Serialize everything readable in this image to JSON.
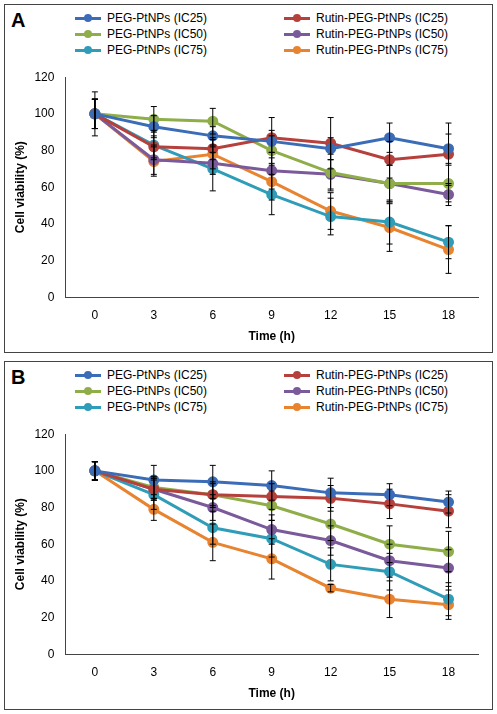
{
  "chart_data": [
    {
      "type": "line",
      "title": "A",
      "x_label": "Time (h)",
      "y_label": "Cell viability (%)",
      "categories": [
        "0",
        "3",
        "6",
        "9",
        "12",
        "15",
        "18"
      ],
      "ylim": [
        0,
        120
      ],
      "yticks": [
        0,
        20,
        40,
        60,
        80,
        100,
        120
      ],
      "grid": false,
      "legend": "top",
      "marker": "circle",
      "series": [
        {
          "name": "PEG-PtNPs (IC25)",
          "color": "#3b6cb7",
          "values": [
            100,
            93,
            88,
            85,
            81,
            87,
            81
          ],
          "errors": [
            8,
            6,
            5,
            6,
            6,
            8,
            8
          ]
        },
        {
          "name": "Rutin-PEG-PtNPs (IC25)",
          "color": "#b6403c",
          "values": [
            100,
            82,
            81,
            87,
            84,
            75,
            78
          ],
          "errors": [
            8,
            6,
            6,
            11,
            14,
            10,
            17
          ]
        },
        {
          "name": "PEG-PtNPs (IC50)",
          "color": "#8fae4a",
          "values": [
            100,
            97,
            96,
            80,
            68,
            62,
            62
          ],
          "errors": [
            8,
            7,
            7,
            8,
            10,
            10,
            10
          ]
        },
        {
          "name": "Rutin-PEG-PtNPs (IC50)",
          "color": "#7a5a9a",
          "values": [
            100,
            75,
            73,
            69,
            67,
            62,
            56
          ],
          "errors": [
            8,
            8,
            6,
            10,
            8,
            10,
            6
          ]
        },
        {
          "name": "PEG-PtNPs (IC75)",
          "color": "#2f9db8",
          "values": [
            100,
            83,
            70,
            56,
            44,
            41,
            30
          ],
          "errors": [
            8,
            8,
            12,
            11,
            10,
            12,
            9
          ]
        },
        {
          "name": "Rutin-PEG-PtNPs (IC75)",
          "color": "#e8832f",
          "values": [
            100,
            74,
            78,
            63,
            47,
            38,
            26
          ],
          "errors": [
            12,
            8,
            8,
            10,
            10,
            13,
            13
          ]
        }
      ]
    },
    {
      "type": "line",
      "title": "B",
      "x_label": "Time (h)",
      "y_label": "Cell viability (%)",
      "categories": [
        "0",
        "3",
        "6",
        "9",
        "12",
        "15",
        "18"
      ],
      "ylim": [
        0,
        120
      ],
      "yticks": [
        0,
        20,
        40,
        60,
        80,
        100,
        120
      ],
      "grid": false,
      "legend": "top",
      "marker": "circle",
      "series": [
        {
          "name": "PEG-PtNPs (IC25)",
          "color": "#3b6cb7",
          "values": [
            100,
            95,
            94,
            92,
            88,
            87,
            83
          ],
          "errors": [
            5,
            8,
            9,
            8,
            8,
            6,
            6
          ]
        },
        {
          "name": "Rutin-PEG-PtNPs (IC25)",
          "color": "#b6403c",
          "values": [
            100,
            90,
            87,
            86,
            85,
            82,
            78
          ],
          "errors": [
            5,
            6,
            6,
            7,
            7,
            8,
            9
          ]
        },
        {
          "name": "PEG-PtNPs (IC50)",
          "color": "#8fae4a",
          "values": [
            100,
            91,
            87,
            81,
            71,
            60,
            56
          ],
          "errors": [
            5,
            6,
            7,
            8,
            9,
            10,
            11
          ]
        },
        {
          "name": "Rutin-PEG-PtNPs (IC50)",
          "color": "#7a5a9a",
          "values": [
            100,
            90,
            80,
            68,
            62,
            51,
            47
          ],
          "errors": [
            5,
            6,
            7,
            8,
            8,
            9,
            10
          ]
        },
        {
          "name": "PEG-PtNPs (IC75)",
          "color": "#2f9db8",
          "values": [
            100,
            87,
            69,
            63,
            49,
            45,
            30
          ],
          "errors": [
            5,
            8,
            9,
            10,
            9,
            10,
            9
          ]
        },
        {
          "name": "Rutin-PEG-PtNPs (IC75)",
          "color": "#e8832f",
          "values": [
            100,
            79,
            61,
            52,
            36,
            30,
            27
          ],
          "errors": [
            5,
            6,
            10,
            11,
            2,
            10,
            8
          ]
        }
      ]
    }
  ]
}
